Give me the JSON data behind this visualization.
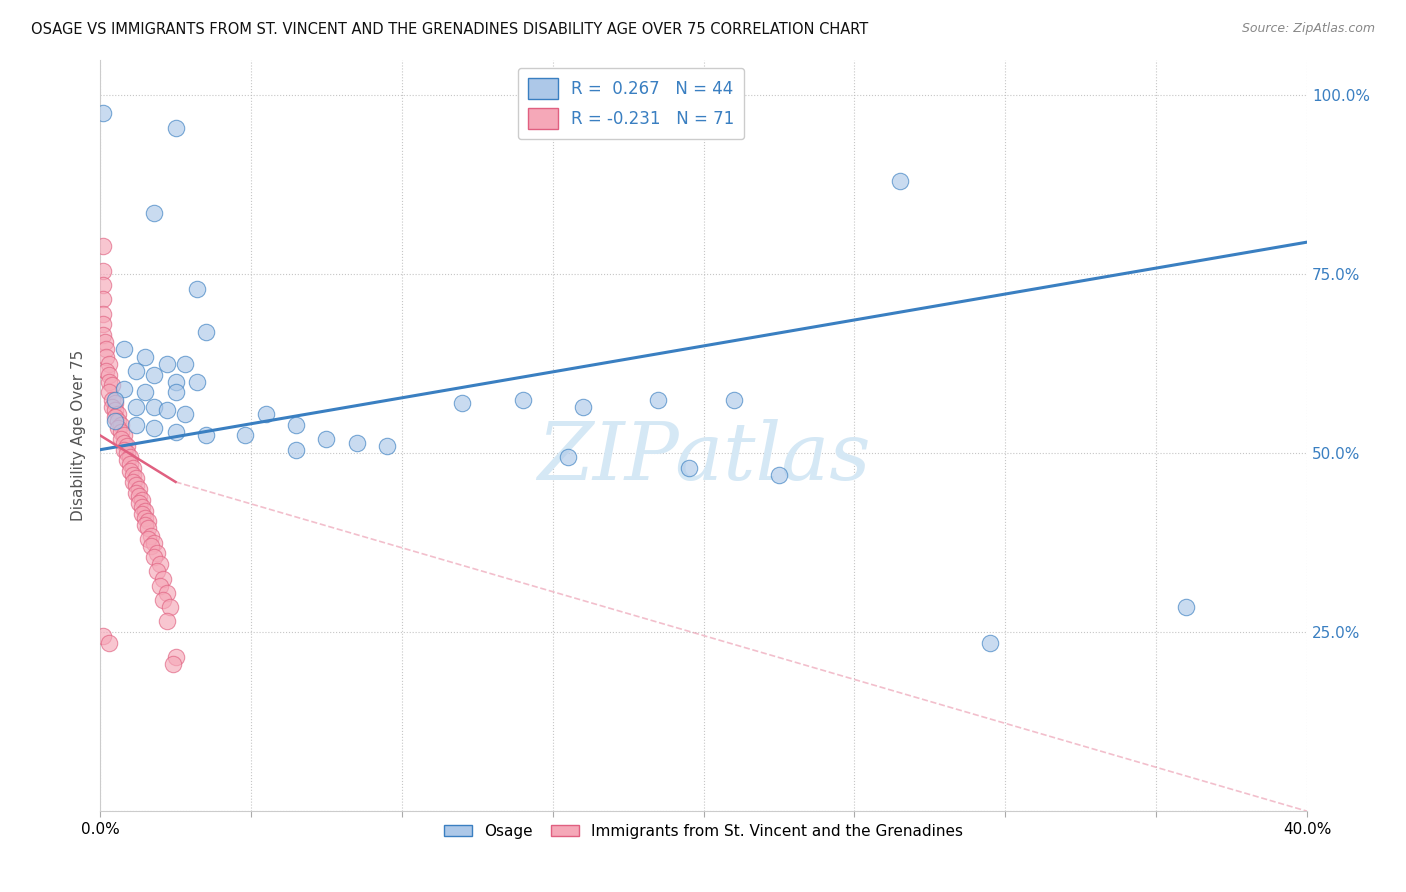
{
  "title": "OSAGE VS IMMIGRANTS FROM ST. VINCENT AND THE GRENADINES DISABILITY AGE OVER 75 CORRELATION CHART",
  "source": "Source: ZipAtlas.com",
  "ylabel": "Disability Age Over 75",
  "legend_label1": "Osage",
  "legend_label2": "Immigrants from St. Vincent and the Grenadines",
  "r1": 0.267,
  "n1": 44,
  "r2": -0.231,
  "n2": 71,
  "color_blue": "#adc8e8",
  "color_pink": "#f5a8b8",
  "color_blue_dark": "#3a7fc1",
  "color_pink_dark": "#e06080",
  "watermark_color": "#d5e8f5",
  "blue_points": [
    [
      0.001,
      0.975
    ],
    [
      0.025,
      0.955
    ],
    [
      0.018,
      0.835
    ],
    [
      0.032,
      0.73
    ],
    [
      0.035,
      0.67
    ],
    [
      0.008,
      0.645
    ],
    [
      0.015,
      0.635
    ],
    [
      0.022,
      0.625
    ],
    [
      0.028,
      0.625
    ],
    [
      0.012,
      0.615
    ],
    [
      0.018,
      0.61
    ],
    [
      0.025,
      0.6
    ],
    [
      0.032,
      0.6
    ],
    [
      0.008,
      0.59
    ],
    [
      0.015,
      0.585
    ],
    [
      0.025,
      0.585
    ],
    [
      0.005,
      0.575
    ],
    [
      0.012,
      0.565
    ],
    [
      0.018,
      0.565
    ],
    [
      0.022,
      0.56
    ],
    [
      0.028,
      0.555
    ],
    [
      0.005,
      0.545
    ],
    [
      0.012,
      0.54
    ],
    [
      0.018,
      0.535
    ],
    [
      0.025,
      0.53
    ],
    [
      0.035,
      0.525
    ],
    [
      0.048,
      0.525
    ],
    [
      0.055,
      0.555
    ],
    [
      0.065,
      0.54
    ],
    [
      0.065,
      0.505
    ],
    [
      0.075,
      0.52
    ],
    [
      0.085,
      0.515
    ],
    [
      0.095,
      0.51
    ],
    [
      0.12,
      0.57
    ],
    [
      0.14,
      0.575
    ],
    [
      0.16,
      0.565
    ],
    [
      0.185,
      0.575
    ],
    [
      0.21,
      0.575
    ],
    [
      0.155,
      0.495
    ],
    [
      0.195,
      0.48
    ],
    [
      0.225,
      0.47
    ],
    [
      0.265,
      0.88
    ],
    [
      0.295,
      0.235
    ],
    [
      0.36,
      0.285
    ]
  ],
  "pink_points": [
    [
      0.001,
      0.79
    ],
    [
      0.001,
      0.755
    ],
    [
      0.0008,
      0.735
    ],
    [
      0.001,
      0.715
    ],
    [
      0.001,
      0.695
    ],
    [
      0.0008,
      0.68
    ],
    [
      0.001,
      0.665
    ],
    [
      0.0015,
      0.655
    ],
    [
      0.002,
      0.645
    ],
    [
      0.002,
      0.635
    ],
    [
      0.003,
      0.625
    ],
    [
      0.002,
      0.615
    ],
    [
      0.003,
      0.61
    ],
    [
      0.003,
      0.6
    ],
    [
      0.004,
      0.595
    ],
    [
      0.003,
      0.585
    ],
    [
      0.004,
      0.575
    ],
    [
      0.005,
      0.57
    ],
    [
      0.004,
      0.565
    ],
    [
      0.005,
      0.56
    ],
    [
      0.006,
      0.555
    ],
    [
      0.005,
      0.55
    ],
    [
      0.006,
      0.545
    ],
    [
      0.007,
      0.54
    ],
    [
      0.006,
      0.535
    ],
    [
      0.007,
      0.53
    ],
    [
      0.008,
      0.525
    ],
    [
      0.007,
      0.52
    ],
    [
      0.008,
      0.515
    ],
    [
      0.009,
      0.51
    ],
    [
      0.008,
      0.505
    ],
    [
      0.009,
      0.5
    ],
    [
      0.01,
      0.495
    ],
    [
      0.009,
      0.49
    ],
    [
      0.01,
      0.485
    ],
    [
      0.011,
      0.48
    ],
    [
      0.01,
      0.475
    ],
    [
      0.011,
      0.47
    ],
    [
      0.012,
      0.465
    ],
    [
      0.011,
      0.46
    ],
    [
      0.012,
      0.455
    ],
    [
      0.013,
      0.45
    ],
    [
      0.012,
      0.445
    ],
    [
      0.013,
      0.44
    ],
    [
      0.014,
      0.435
    ],
    [
      0.013,
      0.43
    ],
    [
      0.014,
      0.425
    ],
    [
      0.015,
      0.42
    ],
    [
      0.014,
      0.415
    ],
    [
      0.015,
      0.41
    ],
    [
      0.016,
      0.405
    ],
    [
      0.015,
      0.4
    ],
    [
      0.016,
      0.395
    ],
    [
      0.017,
      0.385
    ],
    [
      0.016,
      0.38
    ],
    [
      0.018,
      0.375
    ],
    [
      0.017,
      0.37
    ],
    [
      0.019,
      0.36
    ],
    [
      0.018,
      0.355
    ],
    [
      0.02,
      0.345
    ],
    [
      0.019,
      0.335
    ],
    [
      0.021,
      0.325
    ],
    [
      0.02,
      0.315
    ],
    [
      0.022,
      0.305
    ],
    [
      0.021,
      0.295
    ],
    [
      0.023,
      0.285
    ],
    [
      0.022,
      0.265
    ],
    [
      0.001,
      0.245
    ],
    [
      0.003,
      0.235
    ],
    [
      0.025,
      0.215
    ],
    [
      0.024,
      0.205
    ]
  ],
  "blue_line": [
    [
      0.0,
      0.505
    ],
    [
      0.4,
      0.795
    ]
  ],
  "pink_line_solid": [
    [
      0.0,
      0.525
    ],
    [
      0.025,
      0.46
    ]
  ],
  "pink_line_dashed": [
    [
      0.025,
      0.46
    ],
    [
      0.4,
      0.0
    ]
  ]
}
